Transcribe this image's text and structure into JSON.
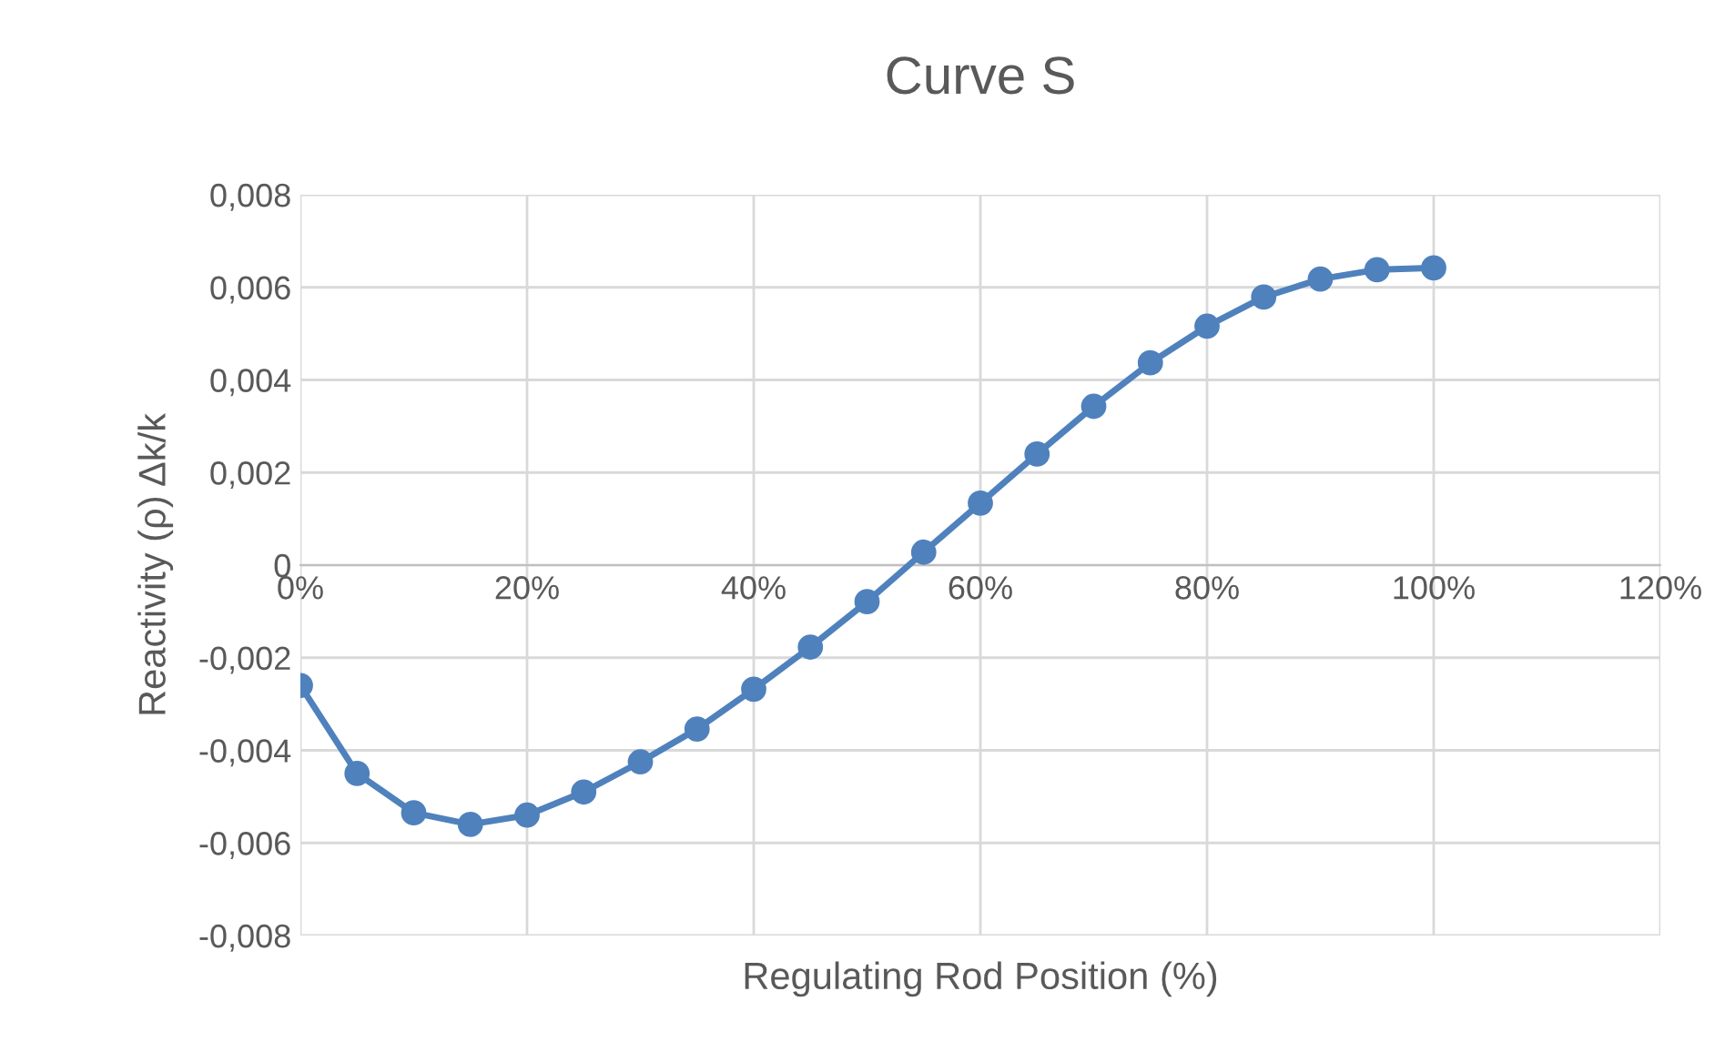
{
  "chart_data": {
    "type": "line",
    "title": "Curve S",
    "xlabel": "Regulating Rod Position (%)",
    "ylabel": "Reactivity (ρ) Δk/k",
    "x": [
      0,
      5,
      10,
      15,
      20,
      25,
      30,
      35,
      40,
      45,
      50,
      55,
      60,
      65,
      70,
      75,
      80,
      85,
      90,
      95,
      100
    ],
    "series": [
      {
        "color": "#4f81bd",
        "values": [
          -0.0026,
          -0.0045,
          -0.00535,
          -0.0056,
          -0.0054,
          -0.0049,
          -0.00425,
          -0.00354,
          -0.00268,
          -0.00177,
          -0.00079,
          0.00028,
          0.00134,
          0.0024,
          0.00343,
          0.00437,
          0.00516,
          0.00579,
          0.00618,
          0.00638,
          0.00642
        ]
      }
    ],
    "xlim": [
      0,
      120
    ],
    "ylim": [
      -0.008,
      0.008
    ],
    "xticks": [
      {
        "value": 0,
        "label": "0%"
      },
      {
        "value": 20,
        "label": "20%"
      },
      {
        "value": 40,
        "label": "40%"
      },
      {
        "value": 60,
        "label": "60%"
      },
      {
        "value": 80,
        "label": "80%"
      },
      {
        "value": 100,
        "label": "100%"
      },
      {
        "value": 120,
        "label": "120%"
      }
    ],
    "yticks": [
      {
        "value": -0.008,
        "label": "-0,008"
      },
      {
        "value": -0.006,
        "label": "-0,006"
      },
      {
        "value": -0.004,
        "label": "-0,004"
      },
      {
        "value": -0.002,
        "label": "-0,002"
      },
      {
        "value": 0,
        "label": "0"
      },
      {
        "value": 0.002,
        "label": "0,002"
      },
      {
        "value": 0.004,
        "label": "0,004"
      },
      {
        "value": 0.006,
        "label": "0,006"
      },
      {
        "value": 0.008,
        "label": "0,008"
      }
    ],
    "grid": true,
    "marker": "circle",
    "line_style": "solid"
  }
}
